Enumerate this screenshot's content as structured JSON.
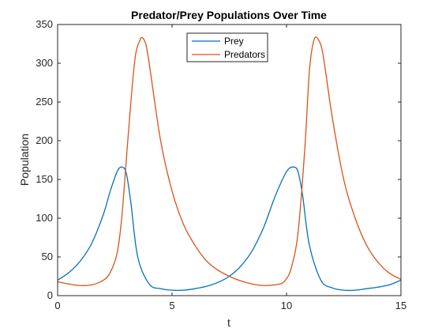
{
  "chart_data": {
    "type": "line",
    "title": "Predator/Prey Populations Over Time",
    "xlabel": "t",
    "ylabel": "Population",
    "xlim": [
      0,
      15
    ],
    "ylim": [
      0,
      350
    ],
    "xticks": [
      0,
      5,
      10,
      15
    ],
    "yticks": [
      0,
      50,
      100,
      150,
      200,
      250,
      300,
      350
    ],
    "grid": false,
    "legend_position": "top-center",
    "series": [
      {
        "name": "Prey",
        "color": "#0072BD",
        "x": [
          0,
          0.5,
          1,
          1.5,
          2,
          2.3,
          2.6,
          2.8,
          3.0,
          3.2,
          3.5,
          4.0,
          4.5,
          5.0,
          5.5,
          6.0,
          6.5,
          7.0,
          7.5,
          8.0,
          8.5,
          9.0,
          9.5,
          10.0,
          10.3,
          10.5,
          10.7,
          11.0,
          11.5,
          12.0,
          12.5,
          13.0,
          13.5,
          14.0,
          14.5,
          15.0
        ],
        "values": [
          20,
          30,
          45,
          68,
          105,
          135,
          160,
          166,
          158,
          120,
          50,
          15,
          9,
          7,
          7,
          9,
          12,
          17,
          25,
          38,
          58,
          88,
          128,
          160,
          166,
          160,
          130,
          65,
          20,
          10,
          7,
          7,
          9,
          11,
          14,
          20
        ]
      },
      {
        "name": "Predators",
        "color": "#D95319",
        "x": [
          0,
          0.5,
          1,
          1.5,
          2,
          2.3,
          2.6,
          2.8,
          3.0,
          3.2,
          3.4,
          3.6,
          3.7,
          3.85,
          4.0,
          4.5,
          5.0,
          5.5,
          6.0,
          6.5,
          7.0,
          7.5,
          8.0,
          8.5,
          9.0,
          9.5,
          9.8,
          10.0,
          10.2,
          10.5,
          10.8,
          11.0,
          11.2,
          11.4,
          11.6,
          12.0,
          12.5,
          13.0,
          13.5,
          14.0,
          14.5,
          15.0
        ],
        "values": [
          18,
          15,
          13,
          14,
          20,
          30,
          55,
          100,
          175,
          250,
          310,
          330,
          333,
          325,
          300,
          200,
          135,
          92,
          65,
          45,
          33,
          25,
          19,
          15,
          13,
          14,
          16,
          22,
          35,
          80,
          190,
          290,
          330,
          330,
          310,
          230,
          150,
          100,
          65,
          43,
          29,
          21
        ]
      }
    ]
  }
}
